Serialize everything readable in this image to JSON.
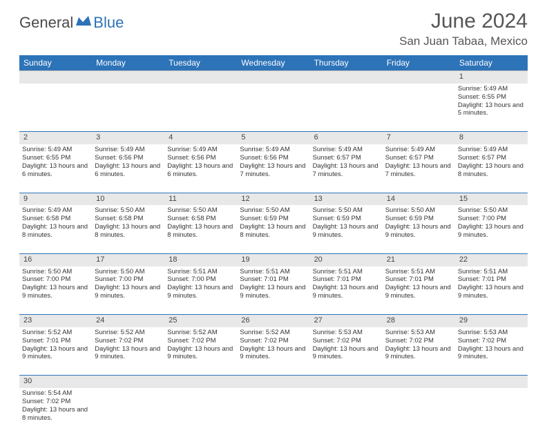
{
  "logo": {
    "part1": "General",
    "part2": "Blue"
  },
  "title": "June 2024",
  "location": "San Juan Tabaa, Mexico",
  "colors": {
    "header_bg": "#2d73b8",
    "header_text": "#ffffff",
    "daynum_bg": "#e8e8e8",
    "border": "#2d73b8",
    "logo_blue": "#2d73b8",
    "logo_gray": "#4a4a4a"
  },
  "day_headers": [
    "Sunday",
    "Monday",
    "Tuesday",
    "Wednesday",
    "Thursday",
    "Friday",
    "Saturday"
  ],
  "weeks": [
    {
      "nums": [
        "",
        "",
        "",
        "",
        "",
        "",
        "1"
      ],
      "cells": [
        null,
        null,
        null,
        null,
        null,
        null,
        {
          "sunrise": "5:49 AM",
          "sunset": "6:55 PM",
          "daylight": "13 hours and 5 minutes."
        }
      ]
    },
    {
      "nums": [
        "2",
        "3",
        "4",
        "5",
        "6",
        "7",
        "8"
      ],
      "cells": [
        {
          "sunrise": "5:49 AM",
          "sunset": "6:55 PM",
          "daylight": "13 hours and 6 minutes."
        },
        {
          "sunrise": "5:49 AM",
          "sunset": "6:56 PM",
          "daylight": "13 hours and 6 minutes."
        },
        {
          "sunrise": "5:49 AM",
          "sunset": "6:56 PM",
          "daylight": "13 hours and 6 minutes."
        },
        {
          "sunrise": "5:49 AM",
          "sunset": "6:56 PM",
          "daylight": "13 hours and 7 minutes."
        },
        {
          "sunrise": "5:49 AM",
          "sunset": "6:57 PM",
          "daylight": "13 hours and 7 minutes."
        },
        {
          "sunrise": "5:49 AM",
          "sunset": "6:57 PM",
          "daylight": "13 hours and 7 minutes."
        },
        {
          "sunrise": "5:49 AM",
          "sunset": "6:57 PM",
          "daylight": "13 hours and 8 minutes."
        }
      ]
    },
    {
      "nums": [
        "9",
        "10",
        "11",
        "12",
        "13",
        "14",
        "15"
      ],
      "cells": [
        {
          "sunrise": "5:49 AM",
          "sunset": "6:58 PM",
          "daylight": "13 hours and 8 minutes."
        },
        {
          "sunrise": "5:50 AM",
          "sunset": "6:58 PM",
          "daylight": "13 hours and 8 minutes."
        },
        {
          "sunrise": "5:50 AM",
          "sunset": "6:58 PM",
          "daylight": "13 hours and 8 minutes."
        },
        {
          "sunrise": "5:50 AM",
          "sunset": "6:59 PM",
          "daylight": "13 hours and 8 minutes."
        },
        {
          "sunrise": "5:50 AM",
          "sunset": "6:59 PM",
          "daylight": "13 hours and 9 minutes."
        },
        {
          "sunrise": "5:50 AM",
          "sunset": "6:59 PM",
          "daylight": "13 hours and 9 minutes."
        },
        {
          "sunrise": "5:50 AM",
          "sunset": "7:00 PM",
          "daylight": "13 hours and 9 minutes."
        }
      ]
    },
    {
      "nums": [
        "16",
        "17",
        "18",
        "19",
        "20",
        "21",
        "22"
      ],
      "cells": [
        {
          "sunrise": "5:50 AM",
          "sunset": "7:00 PM",
          "daylight": "13 hours and 9 minutes."
        },
        {
          "sunrise": "5:50 AM",
          "sunset": "7:00 PM",
          "daylight": "13 hours and 9 minutes."
        },
        {
          "sunrise": "5:51 AM",
          "sunset": "7:00 PM",
          "daylight": "13 hours and 9 minutes."
        },
        {
          "sunrise": "5:51 AM",
          "sunset": "7:01 PM",
          "daylight": "13 hours and 9 minutes."
        },
        {
          "sunrise": "5:51 AM",
          "sunset": "7:01 PM",
          "daylight": "13 hours and 9 minutes."
        },
        {
          "sunrise": "5:51 AM",
          "sunset": "7:01 PM",
          "daylight": "13 hours and 9 minutes."
        },
        {
          "sunrise": "5:51 AM",
          "sunset": "7:01 PM",
          "daylight": "13 hours and 9 minutes."
        }
      ]
    },
    {
      "nums": [
        "23",
        "24",
        "25",
        "26",
        "27",
        "28",
        "29"
      ],
      "cells": [
        {
          "sunrise": "5:52 AM",
          "sunset": "7:01 PM",
          "daylight": "13 hours and 9 minutes."
        },
        {
          "sunrise": "5:52 AM",
          "sunset": "7:02 PM",
          "daylight": "13 hours and 9 minutes."
        },
        {
          "sunrise": "5:52 AM",
          "sunset": "7:02 PM",
          "daylight": "13 hours and 9 minutes."
        },
        {
          "sunrise": "5:52 AM",
          "sunset": "7:02 PM",
          "daylight": "13 hours and 9 minutes."
        },
        {
          "sunrise": "5:53 AM",
          "sunset": "7:02 PM",
          "daylight": "13 hours and 9 minutes."
        },
        {
          "sunrise": "5:53 AM",
          "sunset": "7:02 PM",
          "daylight": "13 hours and 9 minutes."
        },
        {
          "sunrise": "5:53 AM",
          "sunset": "7:02 PM",
          "daylight": "13 hours and 9 minutes."
        }
      ]
    },
    {
      "nums": [
        "30",
        "",
        "",
        "",
        "",
        "",
        ""
      ],
      "cells": [
        {
          "sunrise": "5:54 AM",
          "sunset": "7:02 PM",
          "daylight": "13 hours and 8 minutes."
        },
        null,
        null,
        null,
        null,
        null,
        null
      ]
    }
  ],
  "labels": {
    "sunrise": "Sunrise: ",
    "sunset": "Sunset: ",
    "daylight": "Daylight: "
  }
}
